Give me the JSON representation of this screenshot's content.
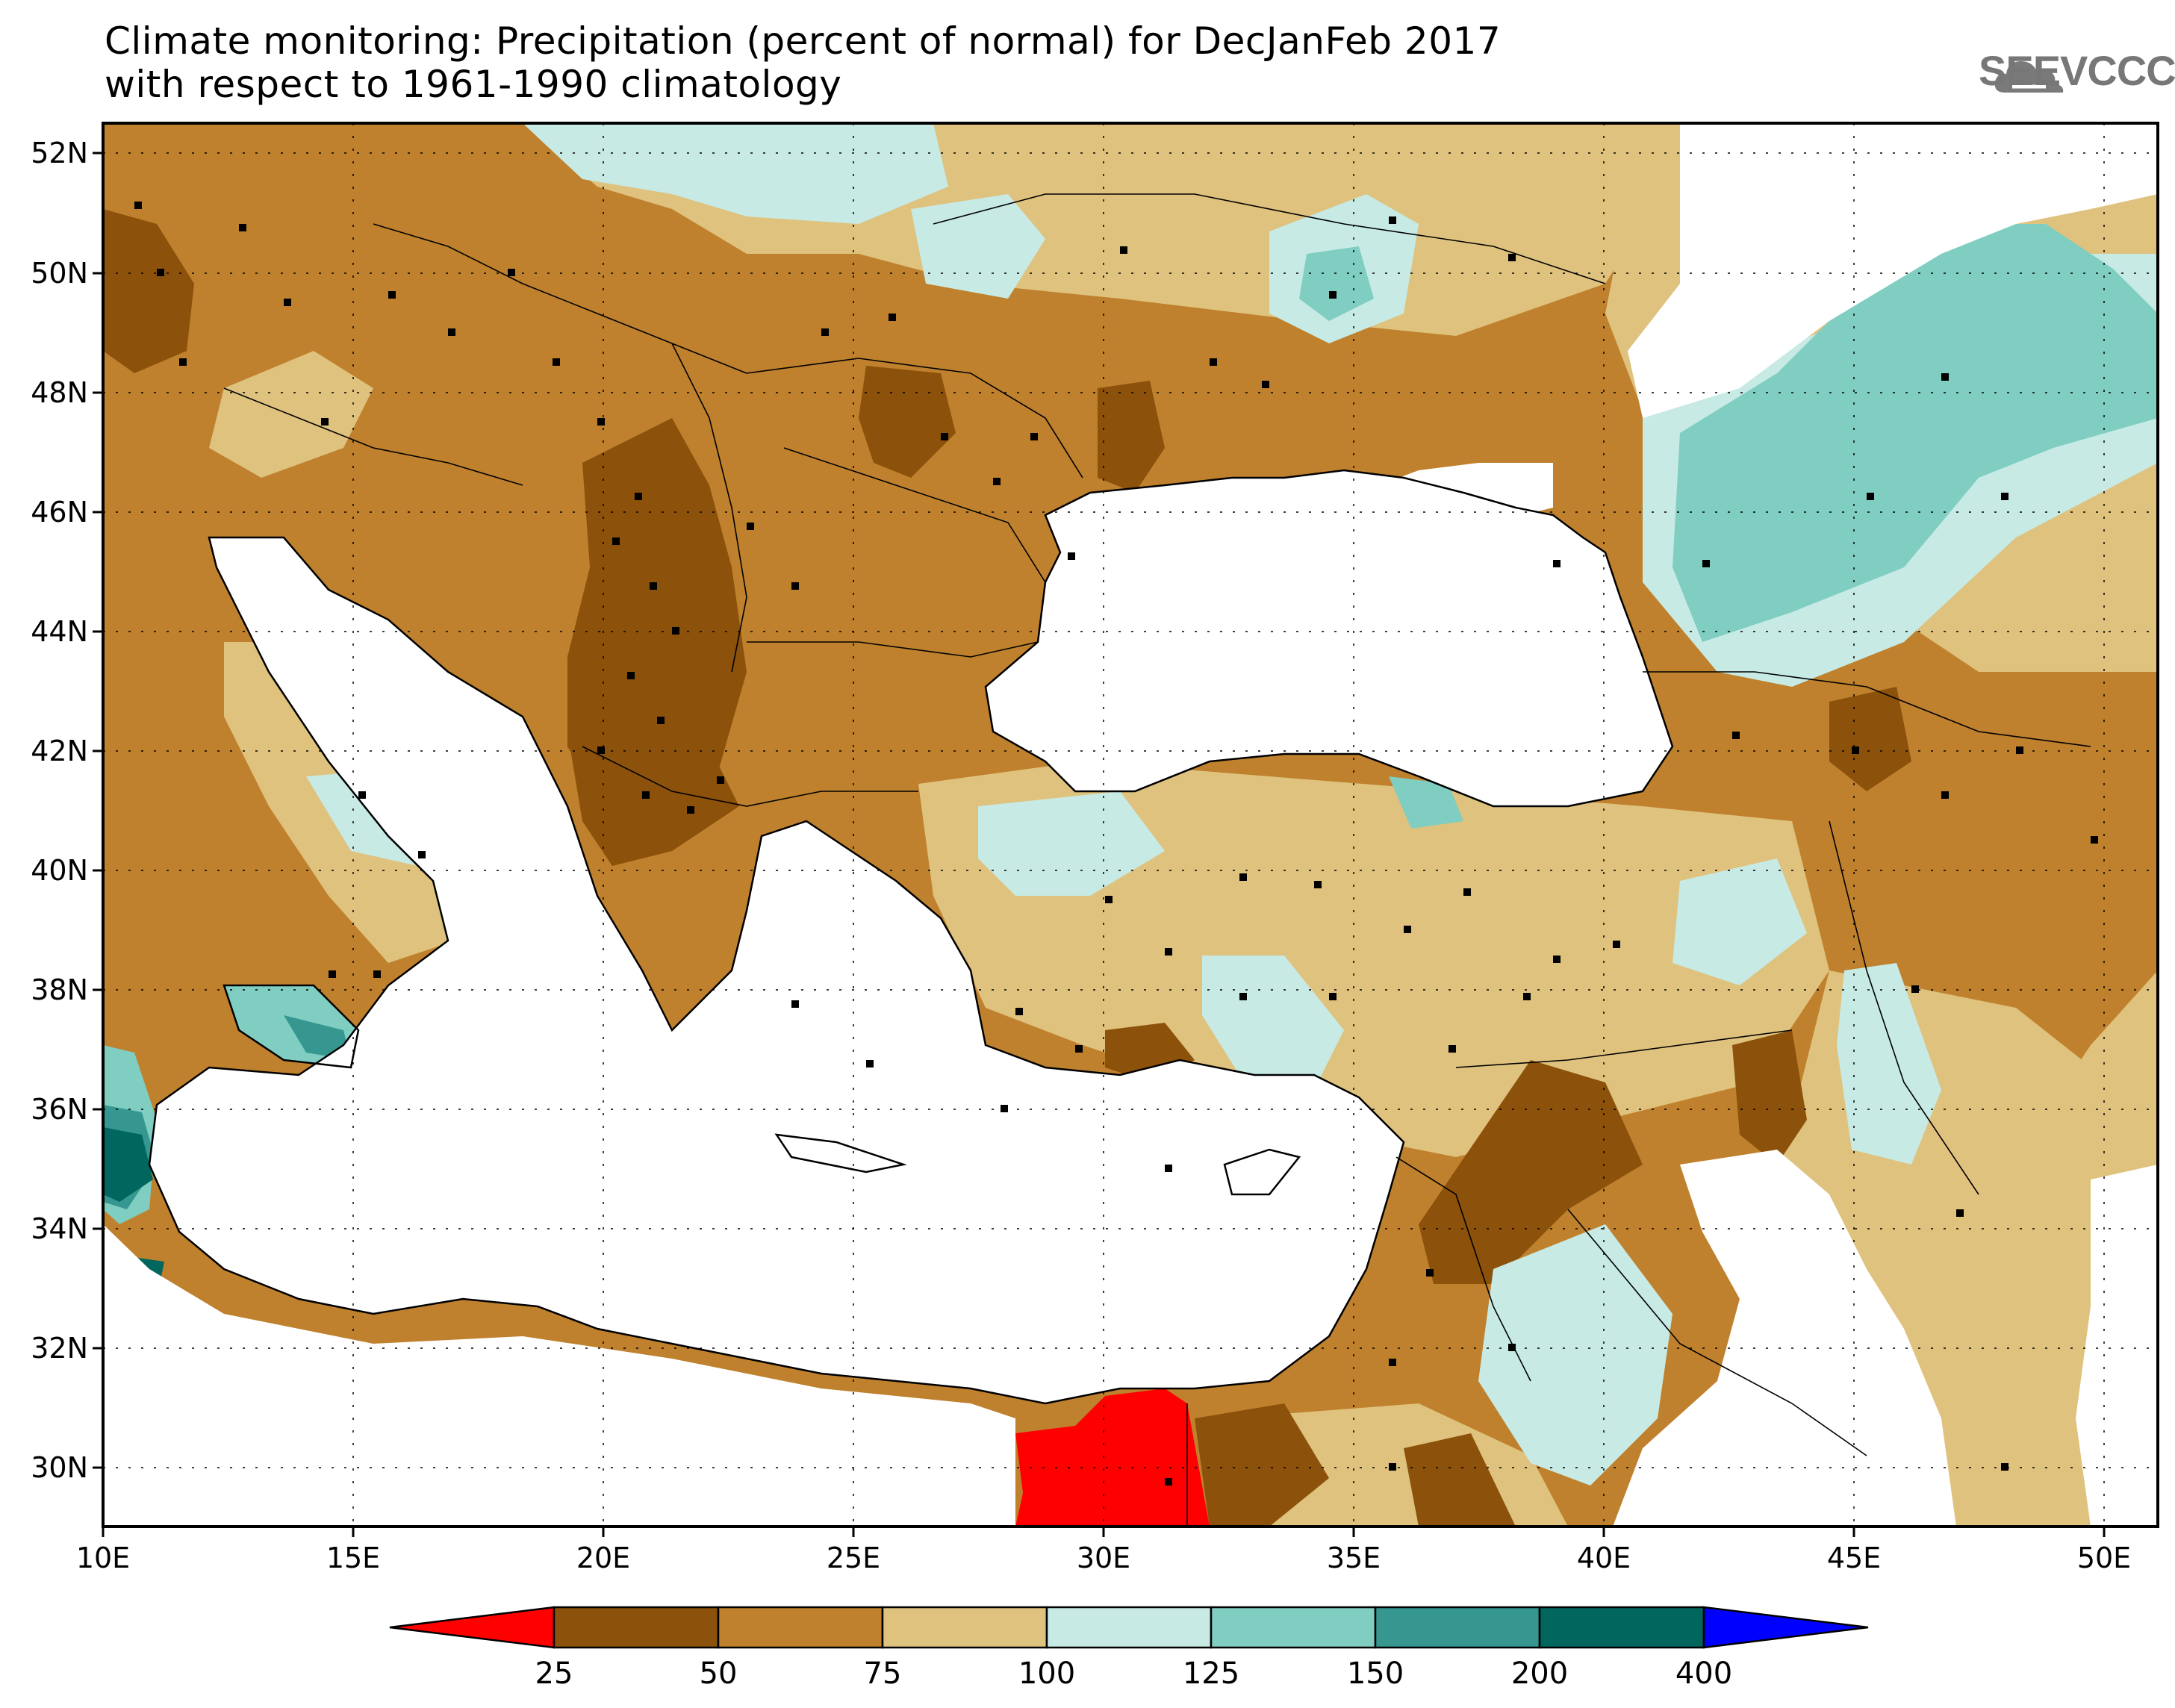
{
  "title": {
    "line1": "Climate monitoring: Precipitation (percent of normal) for DecJanFeb 2017",
    "line2": "with respect to 1961-1990 climatology"
  },
  "logo": {
    "text": "SEEVCCC",
    "icon": "cloud-icon",
    "color": "#7a7a7a"
  },
  "map": {
    "lon_range": [
      10,
      51
    ],
    "lat_range": [
      29,
      52.5
    ],
    "lat_ticks": [
      "52N",
      "50N",
      "48N",
      "46N",
      "44N",
      "42N",
      "40N",
      "38N",
      "36N",
      "34N",
      "32N",
      "30N"
    ],
    "lon_ticks": [
      "10E",
      "15E",
      "20E",
      "25E",
      "30E",
      "35E",
      "40E",
      "45E",
      "50E"
    ],
    "grid": "dotted"
  },
  "colorbar": {
    "labels": [
      "25",
      "50",
      "75",
      "100",
      "125",
      "150",
      "200",
      "400"
    ],
    "colors": {
      "below_25": "#ff0000",
      "25_50": "#8c510a",
      "50_75": "#bf812d",
      "75_100": "#dfc27d",
      "100_125": "#c7eae5",
      "125_150": "#80cdc1",
      "150_200": "#35978f",
      "200_400": "#01665e",
      "above_400": "#0000ff"
    }
  }
}
